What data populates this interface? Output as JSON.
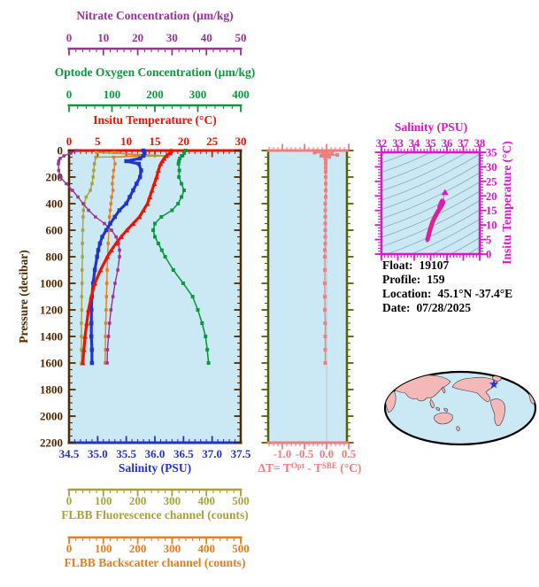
{
  "figure": {
    "background": "#ffffff",
    "plot_background": "#cbe9f4"
  },
  "axes": {
    "nitrate": {
      "title": "Nitrate Concentration (µm/kg)",
      "color": "#993299",
      "min": 0,
      "max": 50,
      "ticks": [
        "0",
        "10",
        "20",
        "30",
        "40",
        "50"
      ],
      "minor_step": 2
    },
    "oxygen": {
      "title": "Optode Oxygen Concentration (µm/kg)",
      "color": "#0a9a3c",
      "min": 0,
      "max": 400,
      "ticks": [
        "0",
        "100",
        "200",
        "300",
        "400"
      ],
      "minor_step": 20
    },
    "temperature": {
      "title": "Insitu Temperature (°C)",
      "color": "#ee1100",
      "min": 0,
      "max": 30,
      "ticks": [
        "0",
        "5",
        "10",
        "15",
        "20",
        "25",
        "30"
      ],
      "minor_step": 1
    },
    "salinity": {
      "title": "Salinity (PSU)",
      "color": "#2233cc",
      "min": 34.5,
      "max": 37.5,
      "ticks": [
        "34.5",
        "35.0",
        "35.5",
        "36.0",
        "36.5",
        "37.0",
        "37.5"
      ],
      "minor_step": 0.1
    },
    "fluorescence": {
      "title": "FLBB Fluorescence channel (counts)",
      "color": "#a8a23a",
      "min": 0,
      "max": 500,
      "ticks": [
        "0",
        "100",
        "200",
        "300",
        "400",
        "500"
      ],
      "minor_step": 20
    },
    "backscatter": {
      "title": "FLBB Backscatter channel (counts)",
      "color": "#e87d1e",
      "min": 0,
      "max": 500,
      "ticks": [
        "0",
        "100",
        "200",
        "300",
        "400",
        "500"
      ],
      "minor_step": 20
    },
    "pressure": {
      "title": "Pressure (decibar)",
      "color": "#532900",
      "min": 0,
      "max": 2200,
      "ticks": [
        "0",
        "200",
        "400",
        "600",
        "800",
        "1000",
        "1200",
        "1400",
        "1600",
        "1800",
        "2000",
        "2200"
      ],
      "minor_step": 50
    },
    "delta_t": {
      "color": "#f47c7c",
      "side_color": "#566000",
      "zero_line_color": "#b8b8b8",
      "min": -1.32,
      "max": 0.46,
      "ticks": [
        "-1.0",
        "-0.5",
        "0.0",
        "0.5"
      ],
      "minor_step": 0.1
    },
    "ts_salinity": {
      "title": "Salinity (PSU)",
      "color": "#df13ce",
      "min": 32,
      "max": 38,
      "ticks": [
        "32",
        "33",
        "34",
        "35",
        "36",
        "37",
        "38"
      ],
      "minor_step": 0.2
    },
    "ts_temperature": {
      "title": "Insitu Temperature (°C)",
      "color": "#df13ce",
      "min": 0,
      "max": 35,
      "ticks": [
        "0",
        "5",
        "10",
        "15",
        "20",
        "25",
        "30",
        "35"
      ],
      "minor_step": 1
    }
  },
  "labels": {
    "delta_t_title": {
      "t1": "ΔT= T",
      "sup1": "Opt",
      "t2": " - T",
      "sup2": "SBE",
      "t3": " (°C)"
    }
  },
  "metadata": {
    "rows": [
      {
        "label": "Float:",
        "value": "19107"
      },
      {
        "label": "Profile:",
        "value": "159"
      },
      {
        "label": "Location:",
        "value": "45.1°N  -37.4°E"
      },
      {
        "label": "Date:",
        "value": "07/28/2025"
      }
    ]
  },
  "map": {
    "ocean": "#cbe9f4",
    "land": "#f5b8b8",
    "outline": "#000000",
    "star_color": "#2233dd",
    "star_note": "float position in North Atlantic"
  },
  "chart_data": [
    {
      "id": "profiles",
      "type": "line",
      "ylabel": "Pressure (decibar)",
      "ylim": [
        0,
        2200
      ],
      "legend": "none",
      "grid": false,
      "series": [
        {
          "name": "FLBB Fluorescence channel (counts)",
          "axis": "fluorescence",
          "marker": "square",
          "points": [
            [
              15,
              80
            ],
            [
              40,
              289
            ],
            [
              50,
              78
            ],
            [
              100,
              74
            ],
            [
              150,
              72
            ],
            [
              200,
              70
            ],
            [
              250,
              67
            ],
            [
              300,
              62
            ],
            [
              350,
              50
            ],
            [
              400,
              44
            ],
            [
              450,
              42
            ],
            [
              500,
              41
            ],
            [
              600,
              40
            ],
            [
              700,
              39
            ],
            [
              800,
              39
            ],
            [
              900,
              38
            ],
            [
              1000,
              38
            ],
            [
              1100,
              37
            ],
            [
              1200,
              37
            ],
            [
              1300,
              36
            ],
            [
              1400,
              36
            ],
            [
              1500,
              36
            ],
            [
              1600,
              36
            ]
          ]
        },
        {
          "name": "FLBB Backscatter channel (counts)",
          "axis": "backscatter",
          "marker": "square",
          "points": [
            [
              15,
              132
            ],
            [
              40,
              211
            ],
            [
              50,
              130
            ],
            [
              100,
              134
            ],
            [
              150,
              130
            ],
            [
              200,
              128
            ],
            [
              250,
              126
            ],
            [
              300,
              128
            ],
            [
              350,
              124
            ],
            [
              400,
              122
            ],
            [
              450,
              120
            ],
            [
              500,
              118
            ],
            [
              600,
              116
            ],
            [
              700,
              114
            ],
            [
              800,
              112
            ],
            [
              900,
              111
            ],
            [
              1000,
              110
            ],
            [
              1100,
              109
            ],
            [
              1200,
              108
            ],
            [
              1300,
              107
            ],
            [
              1400,
              106
            ],
            [
              1500,
              106
            ],
            [
              1600,
              105
            ]
          ]
        },
        {
          "name": "Nitrate Concentration (µm/kg)",
          "axis": "nitrate",
          "marker": "square",
          "points": [
            [
              0,
              2.3
            ],
            [
              20,
              0.5
            ],
            [
              40,
              -1.5
            ],
            [
              60,
              -2.6
            ],
            [
              80,
              -3.0
            ],
            [
              100,
              -3.1
            ],
            [
              150,
              -3.0
            ],
            [
              200,
              -2.6
            ],
            [
              250,
              -0.8
            ],
            [
              300,
              1.0
            ],
            [
              350,
              2.6
            ],
            [
              400,
              4.1
            ],
            [
              450,
              5.7
            ],
            [
              500,
              7.7
            ],
            [
              550,
              10.3
            ],
            [
              600,
              12.4
            ],
            [
              650,
              13.7
            ],
            [
              700,
              14.4
            ],
            [
              750,
              14.7
            ],
            [
              800,
              14.7
            ],
            [
              900,
              14.2
            ],
            [
              1000,
              13.4
            ],
            [
              1100,
              12.8
            ],
            [
              1200,
              12.2
            ],
            [
              1300,
              11.8
            ],
            [
              1400,
              11.5
            ],
            [
              1500,
              11.2
            ],
            [
              1600,
              11.1
            ]
          ]
        },
        {
          "name": "Optode Oxygen Concentration (µm/kg)",
          "axis": "oxygen",
          "marker": "square",
          "points": [
            [
              0,
              272
            ],
            [
              20,
              268
            ],
            [
              40,
              262
            ],
            [
              60,
              258
            ],
            [
              80,
              256
            ],
            [
              100,
              255
            ],
            [
              150,
              257
            ],
            [
              200,
              256
            ],
            [
              250,
              262
            ],
            [
              300,
              268
            ],
            [
              350,
              262
            ],
            [
              400,
              254
            ],
            [
              450,
              240
            ],
            [
              500,
              215
            ],
            [
              550,
              200
            ],
            [
              600,
              196
            ],
            [
              650,
              200
            ],
            [
              700,
              208
            ],
            [
              750,
              216
            ],
            [
              800,
              224
            ],
            [
              900,
              243
            ],
            [
              1000,
              266
            ],
            [
              1100,
              288
            ],
            [
              1200,
              300
            ],
            [
              1300,
              310
            ],
            [
              1400,
              318
            ],
            [
              1500,
              322
            ],
            [
              1600,
              325
            ]
          ]
        },
        {
          "name": "Salinity (PSU)",
          "axis": "salinity",
          "marker": "square",
          "points": [
            [
              0,
              35.8
            ],
            [
              20,
              35.82
            ],
            [
              40,
              35.8
            ],
            [
              60,
              35.74
            ],
            [
              80,
              35.5
            ],
            [
              100,
              35.72
            ],
            [
              150,
              35.76
            ],
            [
              200,
              35.74
            ],
            [
              250,
              35.68
            ],
            [
              300,
              35.62
            ],
            [
              350,
              35.56
            ],
            [
              400,
              35.5
            ],
            [
              450,
              35.38
            ],
            [
              500,
              35.3
            ],
            [
              550,
              35.22
            ],
            [
              600,
              35.15
            ],
            [
              650,
              35.08
            ],
            [
              700,
              35.04
            ],
            [
              750,
              35.01
            ],
            [
              800,
              34.99
            ],
            [
              900,
              34.95
            ],
            [
              1000,
              34.92
            ],
            [
              1100,
              34.9
            ],
            [
              1200,
              34.89
            ],
            [
              1300,
              34.89
            ],
            [
              1400,
              34.89
            ],
            [
              1500,
              34.9
            ],
            [
              1600,
              34.9
            ]
          ]
        },
        {
          "name": "Insitu Temperature (°C)",
          "axis": "temperature",
          "marker": "triangle",
          "points": [
            [
              0,
              17.8
            ],
            [
              20,
              17.6
            ],
            [
              40,
              17.0
            ],
            [
              60,
              16.6
            ],
            [
              80,
              16.3
            ],
            [
              100,
              16.0
            ],
            [
              150,
              15.6
            ],
            [
              200,
              15.3
            ],
            [
              250,
              14.9
            ],
            [
              300,
              14.5
            ],
            [
              350,
              14.1
            ],
            [
              400,
              13.7
            ],
            [
              450,
              13.0
            ],
            [
              500,
              12.3
            ],
            [
              550,
              11.2
            ],
            [
              600,
              10.1
            ],
            [
              650,
              9.1
            ],
            [
              700,
              8.2
            ],
            [
              750,
              7.4
            ],
            [
              800,
              6.7
            ],
            [
              900,
              5.5
            ],
            [
              1000,
              4.5
            ],
            [
              1100,
              3.9
            ],
            [
              1200,
              3.4
            ],
            [
              1300,
              3.1
            ],
            [
              1400,
              2.8
            ],
            [
              1500,
              2.6
            ],
            [
              1600,
              2.4
            ]
          ]
        }
      ]
    },
    {
      "id": "delta_t",
      "type": "line",
      "xlabel": "ΔT= T^Opt - T^SBE (°C)",
      "xlim": [
        -1.32,
        0.46
      ],
      "ylim": [
        0,
        2200
      ],
      "points": [
        [
          8,
          0.02
        ],
        [
          16,
          -0.27
        ],
        [
          22,
          0.12
        ],
        [
          28,
          -0.08
        ],
        [
          34,
          0.24
        ],
        [
          40,
          -0.12
        ],
        [
          48,
          0.06
        ],
        [
          60,
          -0.03
        ],
        [
          80,
          -0.02
        ],
        [
          100,
          -0.02
        ],
        [
          130,
          -0.02
        ],
        [
          160,
          -0.02
        ],
        [
          200,
          -0.02
        ],
        [
          250,
          -0.02
        ],
        [
          300,
          -0.02
        ],
        [
          350,
          -0.02
        ],
        [
          400,
          -0.03
        ],
        [
          450,
          -0.03
        ],
        [
          500,
          -0.03
        ],
        [
          550,
          -0.03
        ],
        [
          600,
          -0.03
        ],
        [
          650,
          -0.03
        ],
        [
          700,
          -0.03
        ],
        [
          750,
          -0.04
        ],
        [
          800,
          -0.04
        ],
        [
          900,
          -0.04
        ],
        [
          1000,
          -0.04
        ],
        [
          1100,
          -0.04
        ],
        [
          1200,
          -0.04
        ],
        [
          1300,
          -0.03
        ],
        [
          1400,
          -0.03
        ],
        [
          1500,
          -0.03
        ],
        [
          1600,
          -0.03
        ]
      ]
    },
    {
      "id": "ts_diagram",
      "type": "line",
      "xlabel": "Salinity (PSU)",
      "ylabel": "Insitu Temperature (°C)",
      "xlim": [
        32,
        38
      ],
      "ylim": [
        0,
        35
      ],
      "isopycnal_contours": true,
      "points": [
        [
          34.8,
          4.6
        ],
        [
          34.82,
          5.2
        ],
        [
          34.86,
          6.0
        ],
        [
          34.9,
          7.0
        ],
        [
          34.96,
          8.2
        ],
        [
          35.03,
          9.5
        ],
        [
          35.12,
          11.0
        ],
        [
          35.24,
          12.5
        ],
        [
          35.38,
          14.0
        ],
        [
          35.52,
          15.3
        ],
        [
          35.63,
          16.3
        ],
        [
          35.72,
          17.2
        ],
        [
          35.77,
          17.9
        ],
        [
          35.62,
          16.6
        ],
        [
          35.55,
          16.2
        ],
        [
          35.62,
          17.3
        ],
        [
          35.7,
          18.2
        ],
        [
          35.76,
          18.6
        ]
      ],
      "surface_marker": [
        35.88,
        21.2
      ]
    }
  ]
}
